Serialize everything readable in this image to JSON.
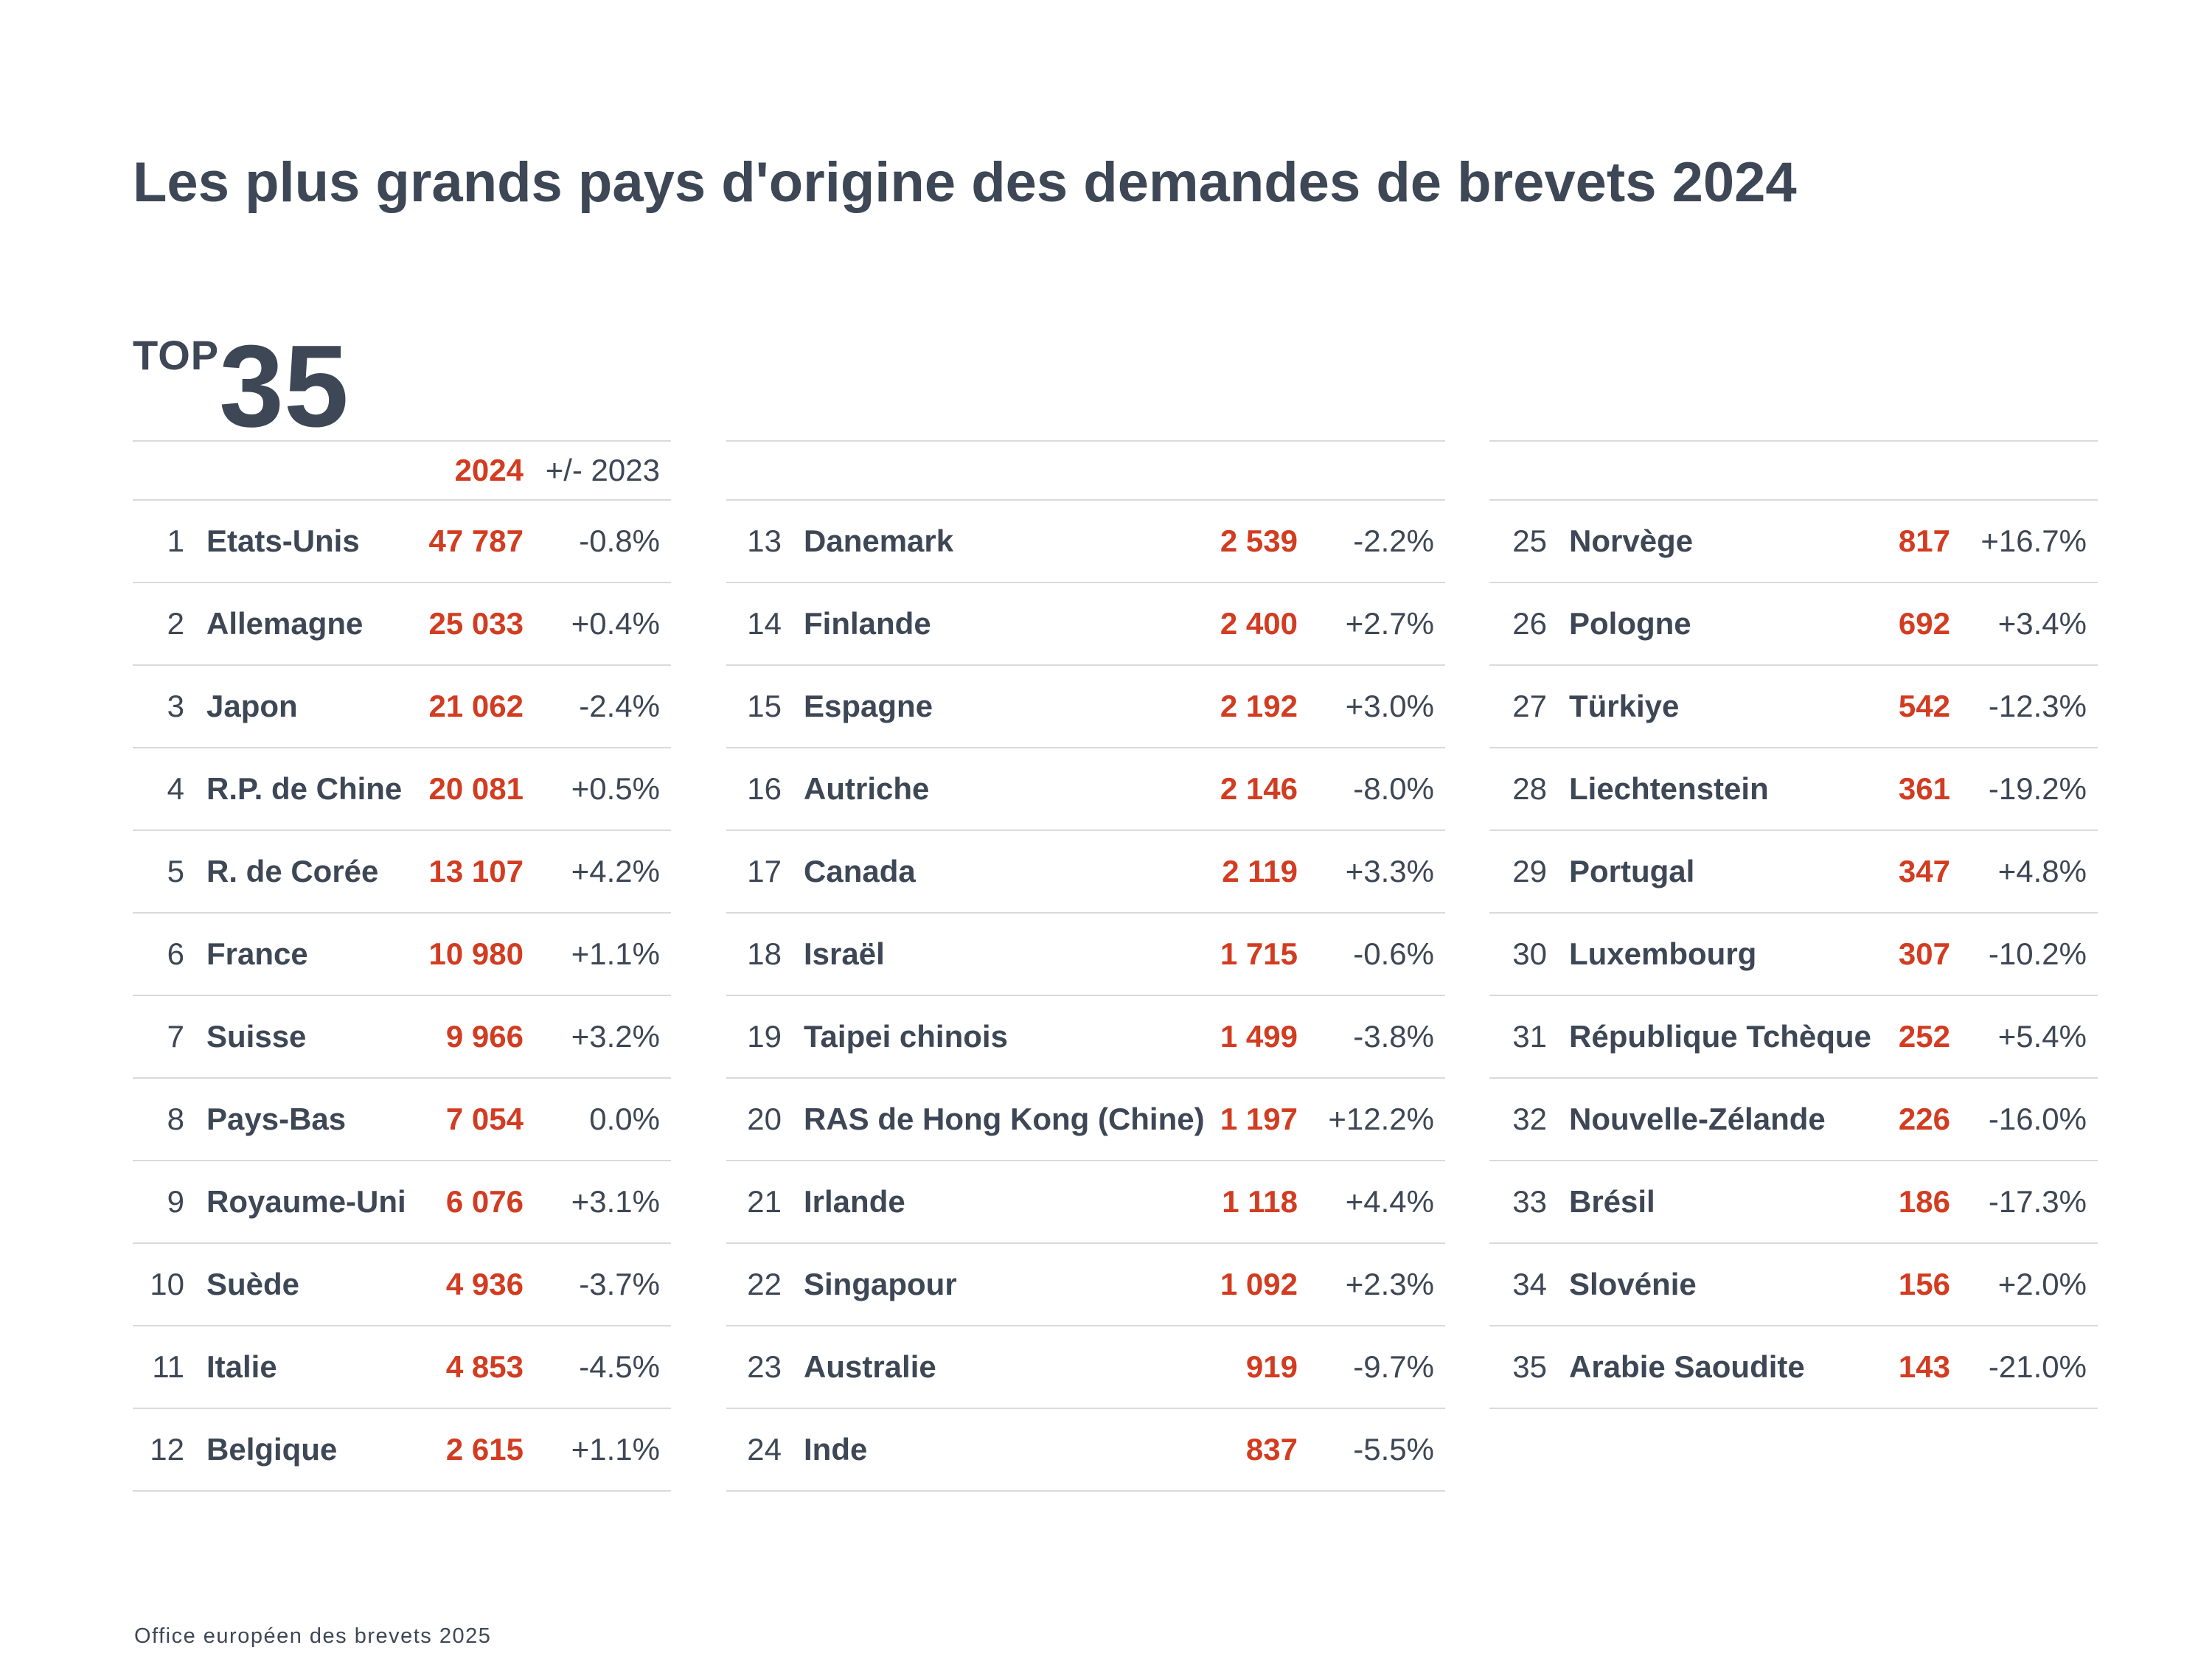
{
  "title": "Les plus grands pays d'origine des demandes de brevets 2024",
  "top_badge": {
    "label": "TOP",
    "number": "35"
  },
  "table_header": {
    "year": "2024",
    "change_label": "+/- 2023"
  },
  "footer": "Office européen des brevets 2025",
  "colors": {
    "accent_red": "#D23C21",
    "text_dark": "#3D4755",
    "line_gray": "#DADADA"
  },
  "chart_data": {
    "type": "table",
    "title": "Les plus grands pays d'origine des demandes de brevets 2024",
    "column_headers": [
      "2024",
      "+/- 2023"
    ],
    "column_split": [
      12,
      12,
      11
    ],
    "rows": [
      {
        "rank": 1,
        "country": "Etats-Unis",
        "value": "47 787",
        "change": "-0.8%"
      },
      {
        "rank": 2,
        "country": "Allemagne",
        "value": "25 033",
        "change": "+0.4%"
      },
      {
        "rank": 3,
        "country": "Japon",
        "value": "21 062",
        "change": "-2.4%"
      },
      {
        "rank": 4,
        "country": "R.P. de Chine",
        "value": "20 081",
        "change": "+0.5%"
      },
      {
        "rank": 5,
        "country": "R. de Corée",
        "value": "13 107",
        "change": "+4.2%"
      },
      {
        "rank": 6,
        "country": "France",
        "value": "10 980",
        "change": "+1.1%"
      },
      {
        "rank": 7,
        "country": "Suisse",
        "value": "9 966",
        "change": "+3.2%"
      },
      {
        "rank": 8,
        "country": "Pays-Bas",
        "value": "7 054",
        "change": "0.0%"
      },
      {
        "rank": 9,
        "country": "Royaume-Uni",
        "value": "6 076",
        "change": "+3.1%"
      },
      {
        "rank": 10,
        "country": "Suède",
        "value": "4 936",
        "change": "-3.7%"
      },
      {
        "rank": 11,
        "country": "Italie",
        "value": "4 853",
        "change": "-4.5%"
      },
      {
        "rank": 12,
        "country": "Belgique",
        "value": "2 615",
        "change": "+1.1%"
      },
      {
        "rank": 13,
        "country": "Danemark",
        "value": "2 539",
        "change": "-2.2%"
      },
      {
        "rank": 14,
        "country": "Finlande",
        "value": "2 400",
        "change": "+2.7%"
      },
      {
        "rank": 15,
        "country": "Espagne",
        "value": "2 192",
        "change": "+3.0%"
      },
      {
        "rank": 16,
        "country": "Autriche",
        "value": "2 146",
        "change": "-8.0%"
      },
      {
        "rank": 17,
        "country": "Canada",
        "value": "2 119",
        "change": "+3.3%"
      },
      {
        "rank": 18,
        "country": "Israël",
        "value": "1 715",
        "change": "-0.6%"
      },
      {
        "rank": 19,
        "country": "Taipei chinois",
        "value": "1 499",
        "change": "-3.8%"
      },
      {
        "rank": 20,
        "country": "RAS de Hong Kong (Chine)",
        "value": "1 197",
        "change": "+12.2%"
      },
      {
        "rank": 21,
        "country": "Irlande",
        "value": "1 118",
        "change": "+4.4%"
      },
      {
        "rank": 22,
        "country": "Singapour",
        "value": "1 092",
        "change": "+2.3%"
      },
      {
        "rank": 23,
        "country": "Australie",
        "value": "919",
        "change": "-9.7%"
      },
      {
        "rank": 24,
        "country": "Inde",
        "value": "837",
        "change": "-5.5%"
      },
      {
        "rank": 25,
        "country": "Norvège",
        "value": "817",
        "change": "+16.7%"
      },
      {
        "rank": 26,
        "country": "Pologne",
        "value": "692",
        "change": "+3.4%"
      },
      {
        "rank": 27,
        "country": "Türkiye",
        "value": "542",
        "change": "-12.3%"
      },
      {
        "rank": 28,
        "country": "Liechtenstein",
        "value": "361",
        "change": "-19.2%"
      },
      {
        "rank": 29,
        "country": "Portugal",
        "value": "347",
        "change": "+4.8%"
      },
      {
        "rank": 30,
        "country": "Luxembourg",
        "value": "307",
        "change": "-10.2%"
      },
      {
        "rank": 31,
        "country": "République Tchèque",
        "value": "252",
        "change": "+5.4%"
      },
      {
        "rank": 32,
        "country": "Nouvelle-Zélande",
        "value": "226",
        "change": "-16.0%"
      },
      {
        "rank": 33,
        "country": "Brésil",
        "value": "186",
        "change": "-17.3%"
      },
      {
        "rank": 34,
        "country": "Slovénie",
        "value": "156",
        "change": "+2.0%"
      },
      {
        "rank": 35,
        "country": "Arabie Saoudite",
        "value": "143",
        "change": "-21.0%"
      }
    ]
  }
}
